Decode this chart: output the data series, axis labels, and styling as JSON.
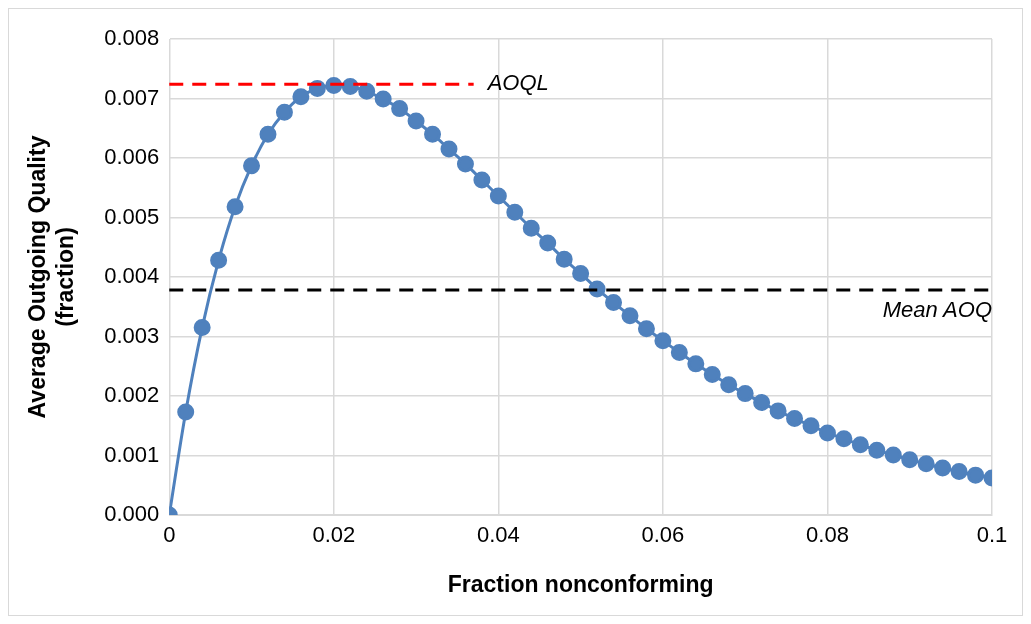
{
  "chart_data": {
    "type": "line",
    "xlabel": "Fraction nonconforming",
    "ylabel": "Average Outgoing Quality\n(fraction)",
    "x": [
      0,
      0.002,
      0.004,
      0.006,
      0.008,
      0.01,
      0.012,
      0.014,
      0.016,
      0.018,
      0.02,
      0.022,
      0.024,
      0.026,
      0.028,
      0.03,
      0.032,
      0.034,
      0.036,
      0.038,
      0.04,
      0.042,
      0.044,
      0.046,
      0.048,
      0.05,
      0.052,
      0.054,
      0.056,
      0.058,
      0.06,
      0.062,
      0.064,
      0.066,
      0.068,
      0.07,
      0.072,
      0.074,
      0.076,
      0.078,
      0.08,
      0.082,
      0.084,
      0.086,
      0.088,
      0.09,
      0.092,
      0.094,
      0.096,
      0.098,
      0.1
    ],
    "series": [
      {
        "color": "#4f81bd",
        "values": [
          0,
          0.00173,
          0.00315,
          0.00428,
          0.00518,
          0.00587,
          0.0064,
          0.00677,
          0.00703,
          0.00717,
          0.00722,
          0.0072,
          0.00712,
          0.00699,
          0.00683,
          0.00662,
          0.0064,
          0.00615,
          0.0059,
          0.00563,
          0.00536,
          0.00509,
          0.00482,
          0.00457,
          0.0043,
          0.00406,
          0.0038,
          0.00357,
          0.00335,
          0.00313,
          0.00293,
          0.00273,
          0.00254,
          0.00236,
          0.00219,
          0.00204,
          0.00189,
          0.00175,
          0.00162,
          0.0015,
          0.00138,
          0.00128,
          0.00118,
          0.00109,
          0.00101,
          0.00093,
          0.00086,
          0.00079,
          0.00073,
          0.00067,
          0.00062
        ]
      }
    ],
    "xlim": [
      0,
      0.1
    ],
    "xticks": [
      0,
      0.02,
      0.04,
      0.06,
      0.08,
      0.1
    ],
    "ylim": [
      0,
      0.008
    ],
    "yticks": [
      {
        "value": 0,
        "label": "0.000"
      },
      {
        "value": 0.001,
        "label": "0.001"
      },
      {
        "value": 0.002,
        "label": "0.002"
      },
      {
        "value": 0.003,
        "label": "0.003"
      },
      {
        "value": 0.004,
        "label": "0.004"
      },
      {
        "value": 0.005,
        "label": "0.005"
      },
      {
        "value": 0.006,
        "label": "0.006"
      },
      {
        "value": 0.007,
        "label": "0.007"
      },
      {
        "value": 0.008,
        "label": "0.008"
      }
    ],
    "ref_lines": [
      {
        "axis": "y",
        "value": 0.00724,
        "label": "AOQL",
        "color": "#ff0000",
        "line_style": "dashed"
      },
      {
        "axis": "y",
        "value": 0.00378,
        "label": "Mean AOQ",
        "color": "#000000",
        "line_style": "dashed"
      }
    ],
    "grid": true,
    "marker": "circle",
    "line_style": "solid",
    "legend": false
  }
}
